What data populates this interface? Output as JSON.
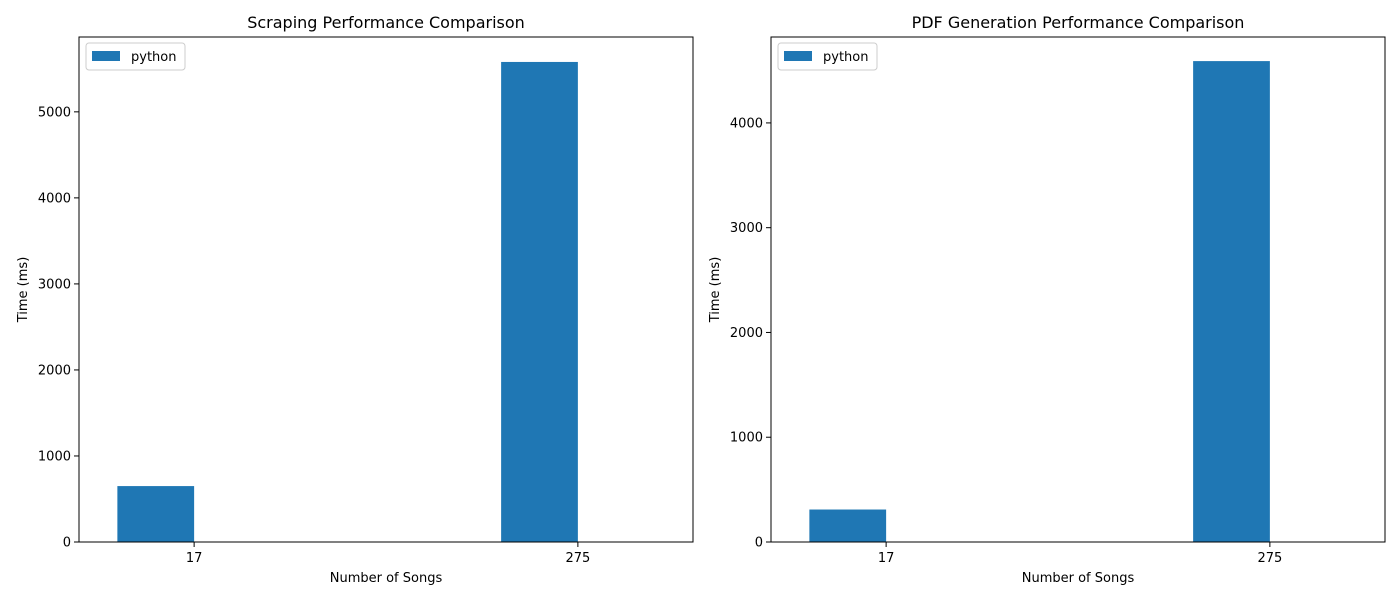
{
  "chart_data": [
    {
      "type": "bar",
      "title": "Scraping Performance Comparison",
      "xlabel": "Number of Songs",
      "ylabel": "Time (ms)",
      "categories": [
        "17",
        "275"
      ],
      "series": [
        {
          "name": "python",
          "values": [
            650,
            5580
          ],
          "color": "#1f77b4"
        }
      ],
      "ylim": [
        0,
        5870
      ],
      "yticks": [
        0,
        1000,
        2000,
        3000,
        4000,
        5000
      ],
      "grid": false,
      "legend": "top-left"
    },
    {
      "type": "bar",
      "title": "PDF Generation Performance Comparison",
      "xlabel": "Number of Songs",
      "ylabel": "Time (ms)",
      "categories": [
        "17",
        "275"
      ],
      "series": [
        {
          "name": "python",
          "values": [
            310,
            4590
          ],
          "color": "#1f77b4"
        }
      ],
      "ylim": [
        0,
        4820
      ],
      "yticks": [
        0,
        1000,
        2000,
        3000,
        4000
      ],
      "grid": false,
      "legend": "top-left"
    }
  ]
}
